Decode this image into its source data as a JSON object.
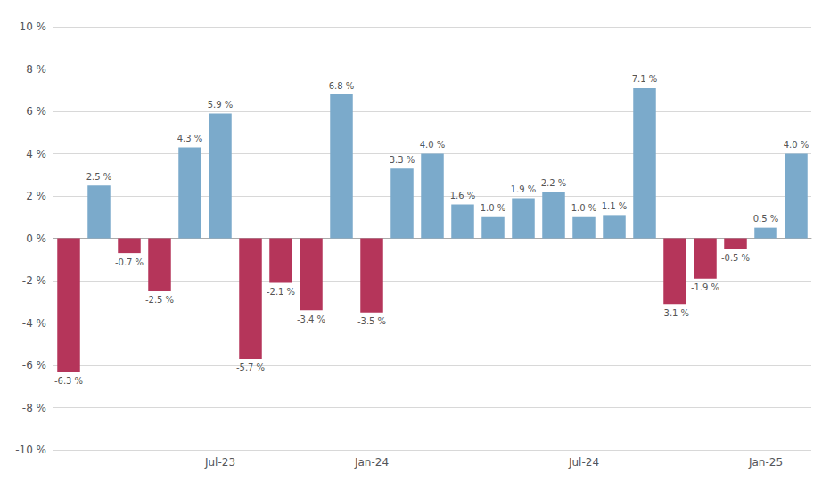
{
  "chart_data": {
    "type": "bar",
    "categories": [
      null,
      null,
      null,
      null,
      null,
      "Jul-23",
      null,
      null,
      null,
      null,
      "Jan-24",
      null,
      null,
      null,
      null,
      null,
      null,
      "Jul-24",
      null,
      null,
      null,
      null,
      null,
      "Jan-25",
      null
    ],
    "values": [
      -6.3,
      2.5,
      -0.7,
      -2.5,
      4.3,
      5.9,
      -5.7,
      -2.1,
      -3.4,
      6.8,
      -3.5,
      3.3,
      4.0,
      1.6,
      1.0,
      1.9,
      2.2,
      1.0,
      1.1,
      7.1,
      -3.1,
      -1.9,
      -0.5,
      0.5,
      4.0
    ],
    "value_labels": [
      "-6.3 %",
      "2.5 %",
      "-0.7 %",
      "-2.5 %",
      "4.3 %",
      "5.9 %",
      "-5.7 %",
      "-2.1 %",
      "-3.4 %",
      "6.8 %",
      "-3.5 %",
      "3.3 %",
      "4.0 %",
      "1.6 %",
      "1.0 %",
      "1.9 %",
      "2.2 %",
      "1.0 %",
      "1.1 %",
      "7.1 %",
      "-3.1 %",
      "-1.9 %",
      "-0.5 %",
      "0.5 %",
      "4.0 %"
    ],
    "colors": [
      "#B5355A",
      "#7BAACB",
      "#B5355A",
      "#B5355A",
      "#7BAACB",
      "#7BAACB",
      "#B5355A",
      "#B5355A",
      "#B5355A",
      "#7BAACB",
      "#B5355A",
      "#7BAACB",
      "#7BAACB",
      "#7BAACB",
      "#7BAACB",
      "#7BAACB",
      "#7BAACB",
      "#7BAACB",
      "#7BAACB",
      "#7BAACB",
      "#B5355A",
      "#B5355A",
      "#B5355A",
      "#7BAACB",
      "#7BAACB"
    ],
    "ylim": [
      -10,
      10
    ],
    "yticks": [
      {
        "value": -10,
        "label": "-10 %"
      },
      {
        "value": -8,
        "label": "-8 %"
      },
      {
        "value": -6,
        "label": "-6 %"
      },
      {
        "value": -4,
        "label": "-4 %"
      },
      {
        "value": -2,
        "label": "-2 %"
      },
      {
        "value": 0,
        "label": "0 %"
      },
      {
        "value": 2,
        "label": "2 %"
      },
      {
        "value": 4,
        "label": "4 %"
      },
      {
        "value": 6,
        "label": "6 %"
      },
      {
        "value": 8,
        "label": "8 %"
      },
      {
        "value": 10,
        "label": "10 %"
      }
    ],
    "grid": true,
    "data_labels": true
  }
}
